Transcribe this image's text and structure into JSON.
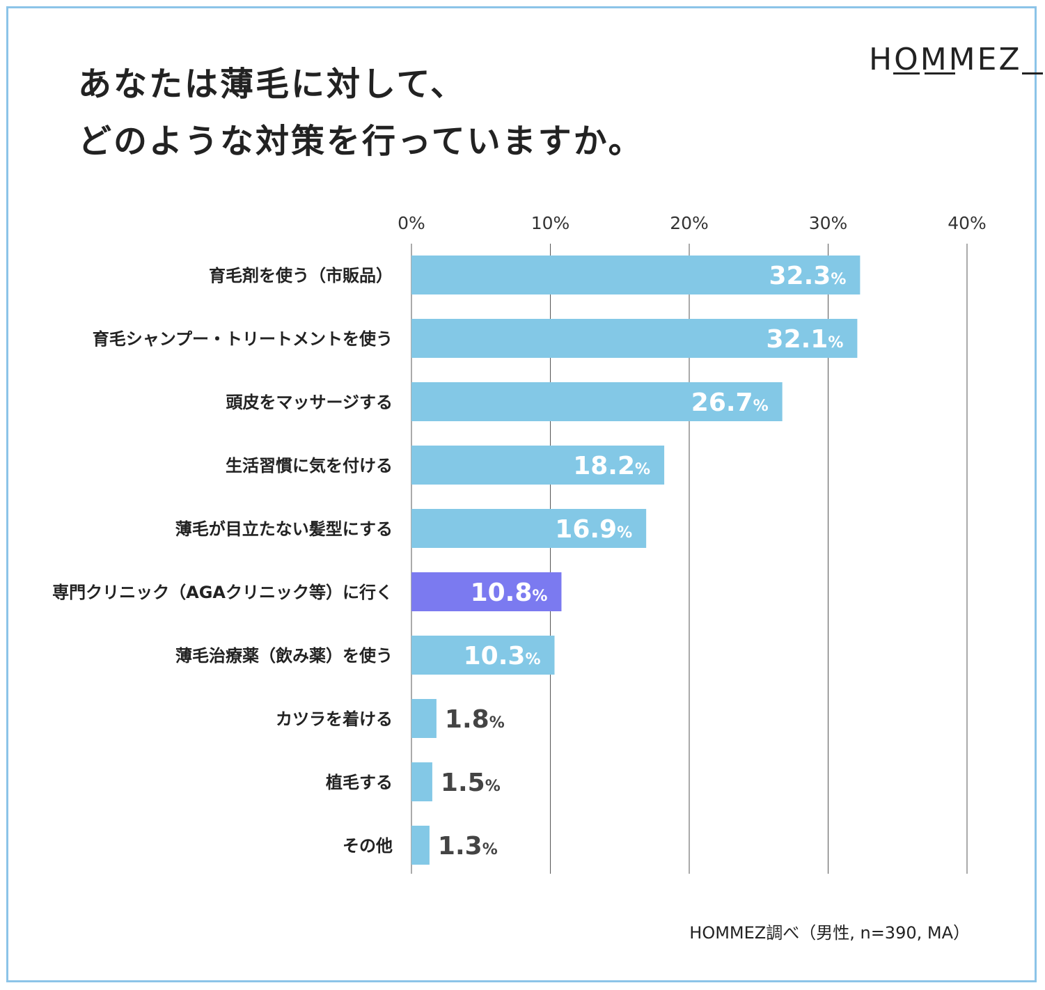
{
  "title": {
    "line1": "あなたは薄毛に対して、",
    "line2": "どのような対策を行っていますか。"
  },
  "brand": "HOMMEZ",
  "source": "HOMMEZ調べ（男性, n=390, MA）",
  "colors": {
    "bar": "#83c8e6",
    "highlight": "#7b7af0",
    "grid": "#555555",
    "frame": "#8cc4e8"
  },
  "chart_data": {
    "type": "bar",
    "orientation": "horizontal",
    "title": "あなたは薄毛に対して、どのような対策を行っていますか。",
    "xlabel": "",
    "ylabel": "",
    "xlim": [
      0,
      40
    ],
    "ticks": [
      "0%",
      "10%",
      "20%",
      "30%",
      "40%"
    ],
    "tick_values": [
      0,
      10,
      20,
      30,
      40
    ],
    "unit": "%",
    "categories": [
      "育毛剤を使う（市販品）",
      "育毛シャンプー・トリートメントを使う",
      "頭皮をマッサージする",
      "生活習慣に気を付ける",
      "薄毛が目立たない髪型にする",
      "専門クリニック（AGAクリニック等）に行く",
      "薄毛治療薬（飲み薬）を使う",
      "カツラを着ける",
      "植毛する",
      "その他"
    ],
    "values": [
      32.3,
      32.1,
      26.7,
      18.2,
      16.9,
      10.8,
      10.3,
      1.8,
      1.5,
      1.3
    ],
    "value_labels": [
      "32.3",
      "32.1",
      "26.7",
      "18.2",
      "16.9",
      "10.8",
      "10.3",
      "1.8",
      "1.5",
      "1.3"
    ],
    "highlight_index": 5,
    "grid": true
  }
}
